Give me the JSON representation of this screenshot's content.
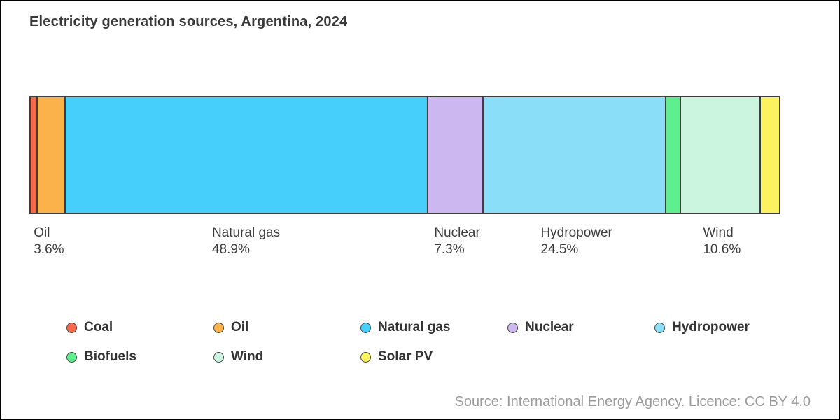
{
  "page": {
    "title": "Electricity generation sources, Argentina, 2024",
    "source_note": "Source: International Energy Agency. Licence: CC BY 4.0"
  },
  "chart_data": {
    "type": "bar",
    "variant": "horizontal-stacked-single-bar",
    "title": "Electricity generation sources, Argentina, 2024",
    "unit": "%",
    "xlim": [
      0,
      100
    ],
    "grid": false,
    "legend_position": "bottom",
    "segment_border_color": "#3d3d3d",
    "label_text_color": "#3d3d3d",
    "series": [
      {
        "name": "Coal",
        "value": 0.8,
        "display_label": null,
        "estimated_from_pixels": true,
        "color": "#f4694c"
      },
      {
        "name": "Oil",
        "value": 3.6,
        "display_label": "3.6%",
        "estimated_from_pixels": false,
        "color": "#fbb24a"
      },
      {
        "name": "Natural gas",
        "value": 48.9,
        "display_label": "48.9%",
        "estimated_from_pixels": false,
        "color": "#47cffc"
      },
      {
        "name": "Nuclear",
        "value": 7.3,
        "display_label": "7.3%",
        "estimated_from_pixels": false,
        "color": "#ccb7f1"
      },
      {
        "name": "Hydropower",
        "value": 24.5,
        "display_label": "24.5%",
        "estimated_from_pixels": false,
        "color": "#8adef7"
      },
      {
        "name": "Biofuels",
        "value": 1.8,
        "display_label": null,
        "estimated_from_pixels": true,
        "color": "#60ef8e"
      },
      {
        "name": "Wind",
        "value": 10.6,
        "display_label": "10.6%",
        "estimated_from_pixels": false,
        "color": "#ccf5e0"
      },
      {
        "name": "Solar PV",
        "value": 2.5,
        "display_label": null,
        "estimated_from_pixels": true,
        "color": "#fcf15e"
      }
    ],
    "legend_entries": [
      "Coal",
      "Oil",
      "Natural gas",
      "Nuclear",
      "Hydropower",
      "Biofuels",
      "Wind",
      "Solar PV"
    ]
  }
}
